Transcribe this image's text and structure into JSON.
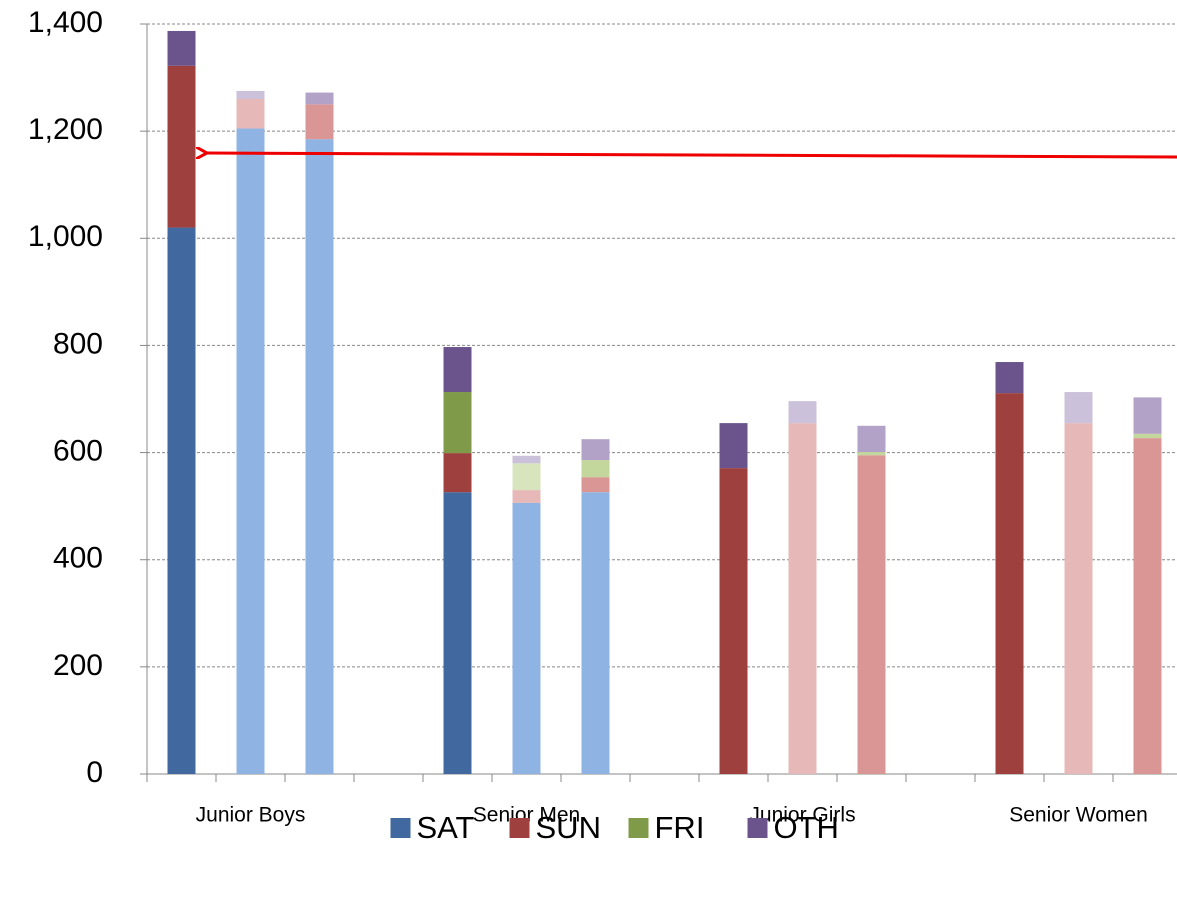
{
  "chart_data": {
    "type": "stacked_bar",
    "categories": [
      null,
      "Junior Boys",
      null,
      null,
      null,
      "Senior Men",
      null,
      null,
      null,
      "Junior Girls",
      null,
      null,
      null,
      "Senior Women",
      null
    ],
    "series": [
      {
        "name": "SAT",
        "color": "#4169a0",
        "colors": [
          "#4169a0",
          "#8fb4e3",
          "#8fb4e3",
          null,
          "#4169a0",
          "#8fb4e3",
          "#8fb4e3",
          null,
          "#4169a0",
          "#8fb4e3",
          "#8fb4e3",
          null,
          "#4169a0",
          "#8fb4e3",
          "#8fb4e3"
        ],
        "values": [
          1020,
          1205,
          1185,
          null,
          526,
          506,
          526,
          null,
          0,
          0,
          0,
          null,
          0,
          0,
          0
        ]
      },
      {
        "name": "SUN",
        "color": "#9e413e",
        "colors": [
          "#9e413e",
          "#e6b9b8",
          "#d99694",
          null,
          "#9e413e",
          "#e6b9b8",
          "#d99694",
          null,
          "#9e413e",
          "#e6b9b8",
          "#d99694",
          null,
          "#9e413e",
          "#e6b9b8",
          "#d99694"
        ],
        "values": [
          302,
          55,
          65,
          null,
          73,
          24,
          28,
          null,
          571,
          655,
          595,
          null,
          711,
          655,
          627
        ]
      },
      {
        "name": "FRI",
        "color": "#7f9a48",
        "colors": [
          "#7f9a48",
          "#d7e4bd",
          "#c3d69b",
          null,
          "#7f9a48",
          "#d7e4bd",
          "#c3d69b",
          null,
          "#7f9a48",
          "#d7e4bd",
          "#c3d69b",
          null,
          "#7f9a48",
          "#d7e4bd",
          "#c3d69b"
        ],
        "values": [
          0,
          0,
          0,
          null,
          114,
          50,
          32,
          null,
          0,
          0,
          6,
          null,
          0,
          0,
          8
        ]
      },
      {
        "name": "OTH",
        "color": "#6b538c",
        "colors": [
          "#6b538c",
          "#ccc1da",
          "#b3a2c7",
          null,
          "#6b538c",
          "#ccc1da",
          "#b3a2c7",
          null,
          "#6b538c",
          "#ccc1da",
          "#b3a2c7",
          null,
          "#6b538c",
          "#ccc1da",
          "#b3a2c7"
        ],
        "values": [
          65,
          15,
          22,
          null,
          84,
          14,
          39,
          null,
          84,
          41,
          49,
          null,
          58,
          58,
          68
        ]
      }
    ],
    "ylim": [
      0,
      1400
    ],
    "yticks": [
      0,
      {
        "value": 200,
        "label": "200"
      },
      400,
      600,
      800,
      {
        "value": 1000,
        "label": "1,000"
      },
      {
        "value": 1200,
        "label": "1,200"
      },
      {
        "value": 1400,
        "label": "1,400"
      }
    ],
    "grid": true,
    "legend": "bottom"
  }
}
